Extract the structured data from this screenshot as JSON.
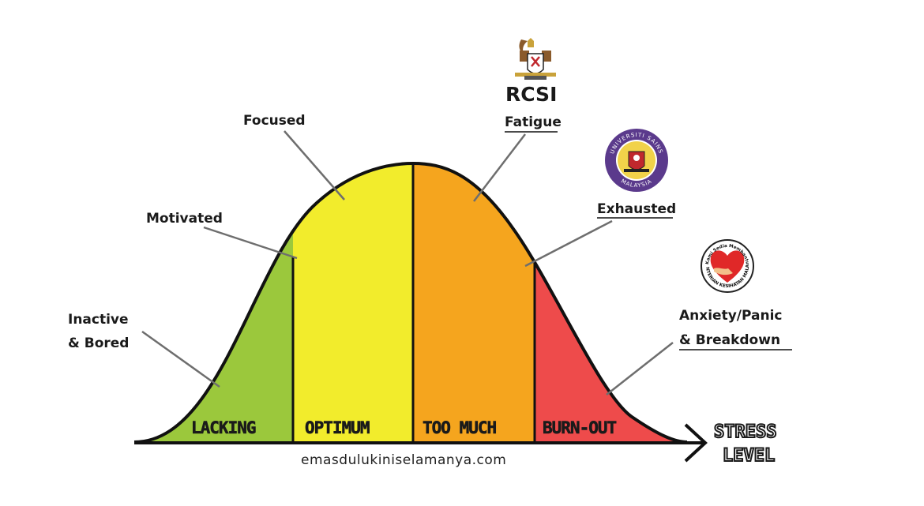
{
  "zones": [
    {
      "label": "LACKING",
      "color": "#9bc83c"
    },
    {
      "label": "OPTIMUM",
      "color": "#f2ec2c"
    },
    {
      "label": "TOO MUCH",
      "color": "#f5a51e"
    },
    {
      "label": "BURN-OUT",
      "color": "#ee4b4b"
    }
  ],
  "curve_labels": {
    "inactive_line1": "Inactive",
    "inactive_line2": "& Bored",
    "motivated": "Motivated",
    "focused": "Focused",
    "fatigue": "Fatigue",
    "exhausted": "Exhausted",
    "anxiety_line1": "Anxiety/Panic",
    "anxiety_line2": "& Breakdown"
  },
  "axis": {
    "label_line1": "STRESS",
    "label_line2": "LEVEL"
  },
  "website": "emasdulukiniselamanya.com",
  "logos": {
    "rcsi_text": "RCSI",
    "usm_ring_top": "UNIVERSITI SAINS",
    "usm_ring_bottom": "MALAYSIA",
    "kkm_ring_top": "Kami Sedia Membantu",
    "kkm_ring_bottom": "KEMENTERIAN KESIHATAN MALAYSIA"
  }
}
